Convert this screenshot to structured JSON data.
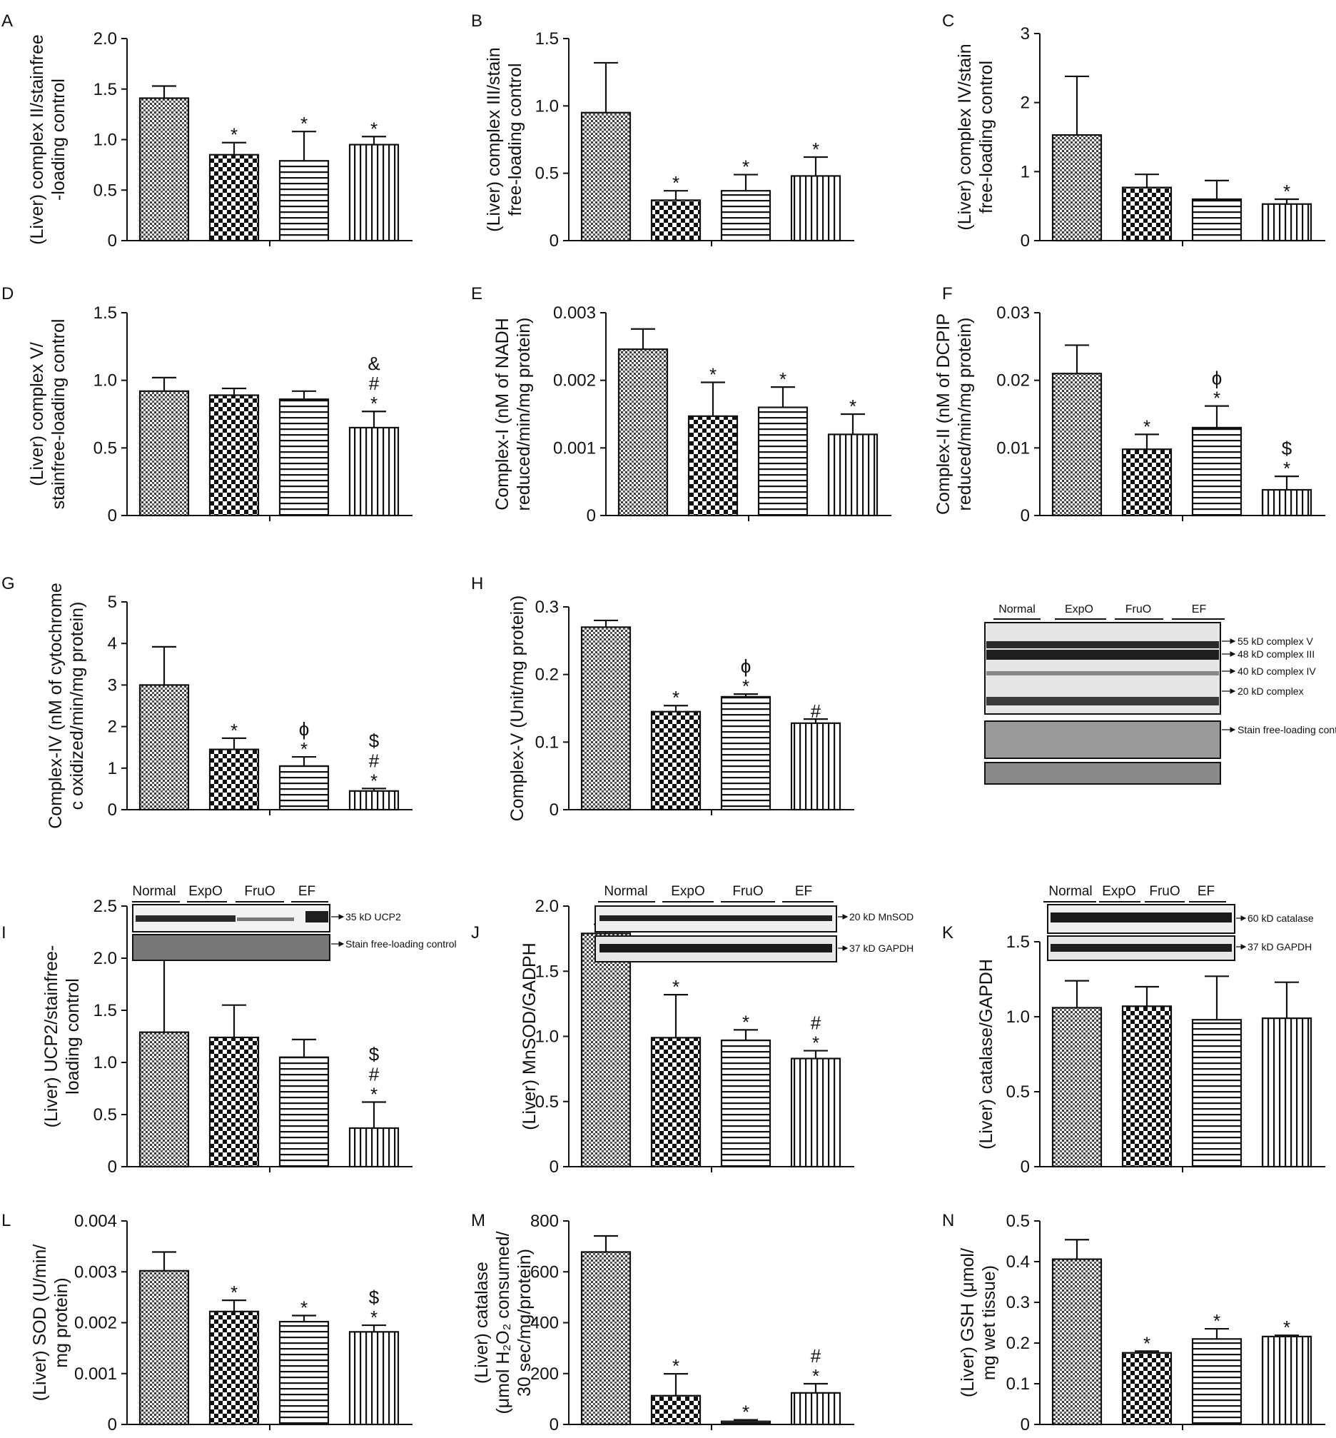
{
  "figure": {
    "groups": [
      "Normal",
      "ExpO",
      "FruO",
      "EF"
    ]
  },
  "blots": {
    "H": {
      "groups": [
        "Normal",
        "ExpO",
        "FruO",
        "EF"
      ],
      "bands": [
        "55 kD complex V",
        "48 kD complex III",
        "40 kD complex IV",
        "20 kD complex"
      ],
      "loading_label": "Stain free-loading control"
    },
    "I": {
      "groups": [
        "Normal",
        "ExpO",
        "FruO",
        "EF"
      ],
      "band": "35 kD UCP2",
      "loading_label": "Stain free-loading control"
    },
    "J": {
      "groups": [
        "Normal",
        "ExpO",
        "FruO",
        "EF"
      ],
      "band": "20 kD MnSOD",
      "loading": "37 kD GAPDH"
    },
    "K": {
      "groups": [
        "Normal",
        "ExpO",
        "FruO",
        "EF"
      ],
      "band": "60 kD catalase",
      "loading": "37 kD GAPDH"
    }
  },
  "chart_data": [
    {
      "panel": "A",
      "type": "bar",
      "categories": [
        "Normal",
        "ExpO",
        "FruO",
        "EF"
      ],
      "ylabel": [
        "(Liver) complex II/stainfree",
        "-loading control"
      ],
      "ylim": [
        0,
        2.0
      ],
      "yticks": [
        "0",
        "0.5",
        "1.0",
        "1.5",
        "2.0"
      ],
      "tickvals": [
        0,
        0.5,
        1.0,
        1.5,
        2.0
      ],
      "values": [
        1.41,
        0.85,
        0.79,
        0.95
      ],
      "errors": [
        0.12,
        0.12,
        0.29,
        0.08
      ],
      "annotations": [
        [],
        [
          "*"
        ],
        [
          "*"
        ],
        [
          "*"
        ]
      ]
    },
    {
      "panel": "B",
      "type": "bar",
      "categories": [
        "Normal",
        "ExpO",
        "FruO",
        "EF"
      ],
      "ylabel": [
        "(Liver) complex III/stain",
        "free-loading control"
      ],
      "ylim": [
        0,
        1.5
      ],
      "yticks": [
        "0",
        "0.5",
        "1.0",
        "1.5"
      ],
      "tickvals": [
        0,
        0.5,
        1.0,
        1.5
      ],
      "values": [
        0.95,
        0.3,
        0.37,
        0.48
      ],
      "errors": [
        0.37,
        0.07,
        0.12,
        0.14
      ],
      "annotations": [
        [],
        [
          "*"
        ],
        [
          "*"
        ],
        [
          "*"
        ]
      ]
    },
    {
      "panel": "C",
      "type": "bar",
      "categories": [
        "Normal",
        "ExpO",
        "FruO",
        "EF"
      ],
      "ylabel": [
        "(Liver) complex IV/stain",
        "free-loading control"
      ],
      "ylim": [
        0,
        3
      ],
      "yticks": [
        "0",
        "1",
        "2",
        "3"
      ],
      "tickvals": [
        0,
        1,
        2,
        3
      ],
      "values": [
        1.53,
        0.77,
        0.6,
        0.53
      ],
      "errors": [
        0.85,
        0.19,
        0.27,
        0.07
      ],
      "annotations": [
        [],
        [],
        [],
        [
          "*"
        ]
      ]
    },
    {
      "panel": "D",
      "type": "bar",
      "categories": [
        "Normal",
        "ExpO",
        "FruO",
        "EF"
      ],
      "ylabel": [
        "(Liver) complex V/",
        "stainfree-loading control"
      ],
      "ylim": [
        0,
        1.5
      ],
      "yticks": [
        "0",
        "0.5",
        "1.0",
        "1.5"
      ],
      "tickvals": [
        0,
        0.5,
        1.0,
        1.5
      ],
      "values": [
        0.92,
        0.89,
        0.86,
        0.65
      ],
      "errors": [
        0.1,
        0.05,
        0.06,
        0.12
      ],
      "annotations": [
        [],
        [],
        [],
        [
          "*",
          "#",
          "&"
        ]
      ]
    },
    {
      "panel": "E",
      "type": "bar",
      "categories": [
        "Normal",
        "ExpO",
        "FruO",
        "EF"
      ],
      "ylabel": [
        "Complex-I (nM of NADH",
        "reduced/min/mg protein)"
      ],
      "ylim": [
        0,
        0.003
      ],
      "yticks": [
        "0",
        "0.001",
        "0.002",
        "0.003"
      ],
      "tickvals": [
        0,
        0.001,
        0.002,
        0.003
      ],
      "values": [
        0.00246,
        0.00147,
        0.0016,
        0.0012
      ],
      "errors": [
        0.0003,
        0.0005,
        0.0003,
        0.0003
      ],
      "annotations": [
        [],
        [
          "*"
        ],
        [
          "*"
        ],
        [
          "*"
        ]
      ]
    },
    {
      "panel": "F",
      "type": "bar",
      "categories": [
        "Normal",
        "ExpO",
        "FruO",
        "EF"
      ],
      "ylabel": [
        "Complex-II (nM of DCPIP",
        "reduced/min/mg protein)"
      ],
      "ylim": [
        0,
        0.03
      ],
      "yticks": [
        "0",
        "0.01",
        "0.02",
        "0.03"
      ],
      "tickvals": [
        0,
        0.01,
        0.02,
        0.03
      ],
      "values": [
        0.021,
        0.0098,
        0.013,
        0.0038
      ],
      "errors": [
        0.0042,
        0.0022,
        0.0032,
        0.002
      ],
      "annotations": [
        [],
        [
          "*"
        ],
        [
          "*",
          "ϕ"
        ],
        [
          "*",
          "$"
        ]
      ]
    },
    {
      "panel": "G",
      "type": "bar",
      "categories": [
        "Normal",
        "ExpO",
        "FruO",
        "EF"
      ],
      "ylabel": [
        "Complex-IV (nM of cytochrome",
        "c oxidized/min/mg protein)"
      ],
      "ylim": [
        0,
        5
      ],
      "yticks": [
        "0",
        "1",
        "2",
        "3",
        "4",
        "5"
      ],
      "tickvals": [
        0,
        1,
        2,
        3,
        4,
        5
      ],
      "values": [
        3.0,
        1.45,
        1.05,
        0.45
      ],
      "errors": [
        0.92,
        0.27,
        0.22,
        0.06
      ],
      "annotations": [
        [],
        [
          "*"
        ],
        [
          "*",
          "ϕ"
        ],
        [
          "*",
          "#",
          "$"
        ]
      ]
    },
    {
      "panel": "H",
      "type": "bar",
      "categories": [
        "Normal",
        "ExpO",
        "FruO",
        "EF"
      ],
      "ylabel": [
        "Complex-V (Unit/mg protein)"
      ],
      "ylim": [
        0,
        0.3
      ],
      "yticks": [
        "0",
        "0.1",
        "0.2",
        "0.3"
      ],
      "tickvals": [
        0,
        0.1,
        0.2,
        0.3
      ],
      "values": [
        0.27,
        0.145,
        0.167,
        0.128
      ],
      "errors": [
        0.01,
        0.009,
        0.004,
        0.006
      ],
      "annotations": [
        [],
        [
          "*"
        ],
        [
          "*",
          "ϕ"
        ],
        [
          "#"
        ]
      ]
    },
    {
      "panel": "I",
      "type": "bar",
      "categories": [
        "Normal",
        "ExpO",
        "FruO",
        "EF"
      ],
      "ylabel": [
        "(Liver) UCP2/stainfree-",
        "loading control"
      ],
      "ylim": [
        0,
        2.5
      ],
      "yticks": [
        "0",
        "0.5",
        "1.0",
        "1.5",
        "2.0",
        "2.5"
      ],
      "tickvals": [
        0,
        0.5,
        1.0,
        1.5,
        2.0,
        2.5
      ],
      "values": [
        1.29,
        1.24,
        1.05,
        0.37
      ],
      "errors": [
        0.9,
        0.31,
        0.17,
        0.25
      ],
      "annotations": [
        [],
        [],
        [],
        [
          "*",
          "#",
          "$"
        ]
      ]
    },
    {
      "panel": "J",
      "type": "bar",
      "categories": [
        "Normal",
        "ExpO",
        "FruO",
        "EF"
      ],
      "ylabel": [
        "(Liver) MnSOD/GADPH"
      ],
      "ylim": [
        0,
        2.0
      ],
      "yticks": [
        "0",
        "0.5",
        "1.0",
        "1.5",
        "2.0"
      ],
      "tickvals": [
        0,
        0.5,
        1.0,
        1.5,
        2.0
      ],
      "values": [
        1.79,
        0.99,
        0.97,
        0.83
      ],
      "errors": [
        0.07,
        0.33,
        0.08,
        0.06
      ],
      "annotations": [
        [],
        [
          "*"
        ],
        [
          "*"
        ],
        [
          "*",
          "#"
        ]
      ]
    },
    {
      "panel": "K",
      "type": "bar",
      "categories": [
        "Normal",
        "ExpO",
        "FruO",
        "EF"
      ],
      "ylabel": [
        "(Liver) catalase/GAPDH"
      ],
      "ylim": [
        0,
        1.5
      ],
      "yticks": [
        "0",
        "0.5",
        "1.0",
        "1.5"
      ],
      "tickvals": [
        0,
        0.5,
        1.0,
        1.5
      ],
      "values": [
        1.06,
        1.07,
        0.98,
        0.99
      ],
      "errors": [
        0.18,
        0.13,
        0.29,
        0.24
      ],
      "annotations": [
        [],
        [],
        [],
        []
      ]
    },
    {
      "panel": "L",
      "type": "bar",
      "categories": [
        "Normal",
        "ExpO",
        "FruO",
        "EF"
      ],
      "ylabel": [
        "(Liver) SOD (U/min/",
        "mg protein)"
      ],
      "ylim": [
        0,
        0.004
      ],
      "yticks": [
        "0",
        "0.001",
        "0.002",
        "0.003",
        "0.004"
      ],
      "tickvals": [
        0,
        0.001,
        0.002,
        0.003,
        0.004
      ],
      "values": [
        0.00302,
        0.00222,
        0.00202,
        0.00182
      ],
      "errors": [
        0.00037,
        0.00022,
        0.00012,
        0.00013
      ],
      "annotations": [
        [],
        [
          "*"
        ],
        [
          "*"
        ],
        [
          "*",
          "$"
        ]
      ]
    },
    {
      "panel": "M",
      "type": "bar",
      "categories": [
        "Normal",
        "ExpO",
        "FruO",
        "EF"
      ],
      "ylabel": [
        "(Liver) catalase",
        "(μmol H₂O₂ consumed/",
        "30 sec/mg/protein)"
      ],
      "ylim": [
        0,
        800
      ],
      "yticks": [
        "0",
        "200",
        "400",
        "600",
        "800"
      ],
      "tickvals": [
        0,
        200,
        400,
        600,
        800
      ],
      "values": [
        678,
        113,
        12,
        124
      ],
      "errors": [
        63,
        86,
        6,
        36
      ],
      "annotations": [
        [],
        [
          "*"
        ],
        [
          "*"
        ],
        [
          "*",
          "#"
        ]
      ]
    },
    {
      "panel": "N",
      "type": "bar",
      "categories": [
        "Normal",
        "ExpO",
        "FruO",
        "EF"
      ],
      "ylabel": [
        "(Liver) GSH (μmol/",
        "mg wet tissue)"
      ],
      "ylim": [
        0,
        0.5
      ],
      "yticks": [
        "0",
        "0.1",
        "0.2",
        "0.3",
        "0.4",
        "0.5"
      ],
      "tickvals": [
        0,
        0.1,
        0.2,
        0.3,
        0.4,
        0.5
      ],
      "values": [
        0.406,
        0.176,
        0.21,
        0.216
      ],
      "errors": [
        0.048,
        0.004,
        0.025,
        0.003
      ],
      "annotations": [
        [],
        [
          "*"
        ],
        [
          "*"
        ],
        [
          "*"
        ]
      ]
    }
  ]
}
